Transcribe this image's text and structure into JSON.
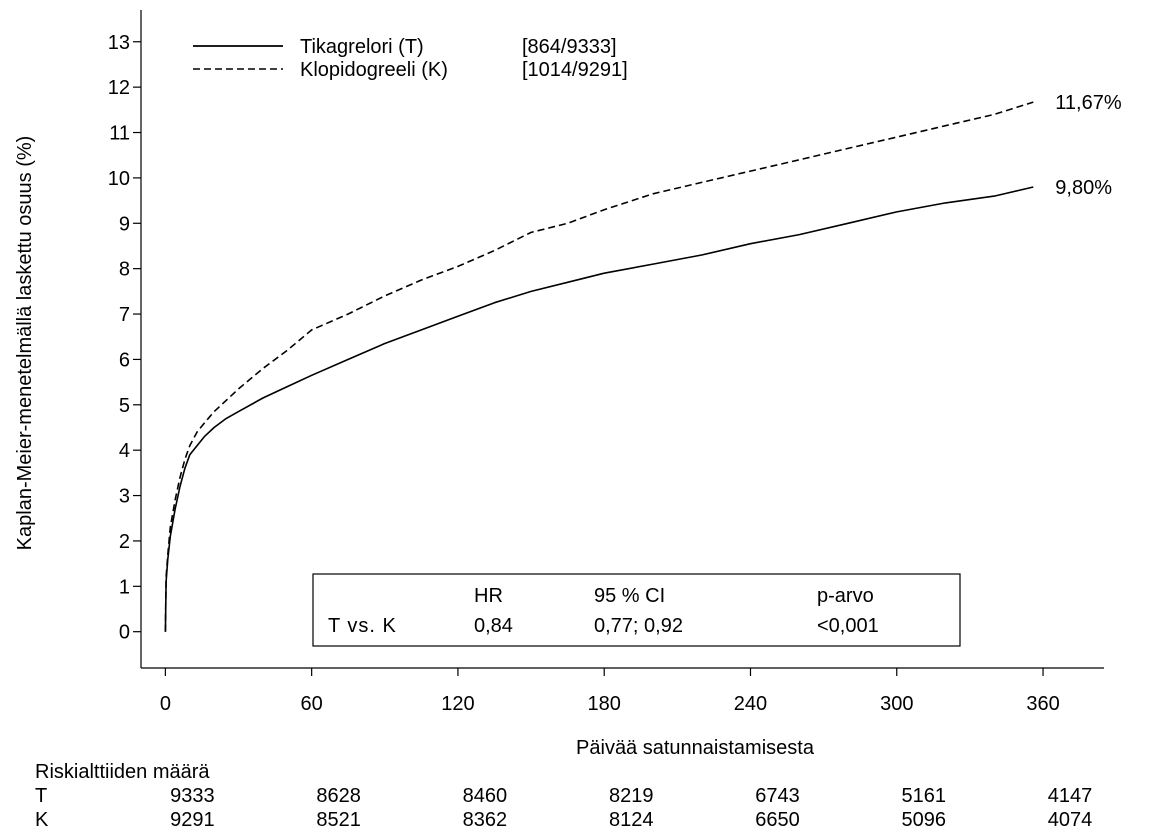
{
  "chart_data": {
    "type": "line",
    "xlabel": "Päivää satunnaistamisesta",
    "ylabel": "Kaplan-Meier-menetelmällä laskettu osuus (%)",
    "xlim": [
      -10,
      385
    ],
    "ylim": [
      -0.8,
      13.7
    ],
    "x_ticks": [
      0,
      60,
      120,
      180,
      240,
      300,
      360
    ],
    "x_tick_labels": [
      "0",
      "60",
      "120",
      "180",
      "240",
      "300",
      "360"
    ],
    "y_ticks": [
      0,
      1,
      2,
      3,
      4,
      5,
      6,
      7,
      8,
      9,
      10,
      11,
      12,
      13
    ],
    "y_tick_labels": [
      "0",
      "1",
      "2",
      "3",
      "4",
      "5",
      "6",
      "7",
      "8",
      "9",
      "10",
      "11",
      "12",
      "13"
    ],
    "legend_position": "top-left",
    "grid": false,
    "series": [
      {
        "name": "Tikagrelori (T)",
        "count": "[864/9333]",
        "line_style": "solid",
        "end_label": "9,80%",
        "x": [
          0,
          0.3,
          1,
          2,
          4,
          6,
          8,
          10,
          13,
          16,
          20,
          25,
          30,
          40,
          50,
          60,
          75,
          90,
          105,
          120,
          135,
          150,
          165,
          180,
          200,
          220,
          240,
          260,
          280,
          300,
          320,
          340,
          356
        ],
        "y": [
          0,
          1.1,
          1.6,
          2.1,
          2.7,
          3.2,
          3.6,
          3.9,
          4.1,
          4.3,
          4.5,
          4.7,
          4.85,
          5.15,
          5.4,
          5.65,
          6.0,
          6.35,
          6.65,
          6.95,
          7.25,
          7.5,
          7.7,
          7.9,
          8.1,
          8.3,
          8.55,
          8.75,
          9.0,
          9.25,
          9.45,
          9.6,
          9.8
        ]
      },
      {
        "name": "Klopidogreeli (K)",
        "count": "[1014/9291]",
        "line_style": "dashed",
        "end_label": "11,67%",
        "x": [
          0,
          0.3,
          1,
          2,
          4,
          6,
          8,
          10,
          13,
          16,
          20,
          25,
          30,
          40,
          50,
          60,
          75,
          90,
          105,
          120,
          135,
          150,
          165,
          180,
          200,
          220,
          240,
          260,
          280,
          300,
          320,
          340,
          356
        ],
        "y": [
          0,
          1.2,
          1.7,
          2.3,
          2.9,
          3.4,
          3.8,
          4.1,
          4.4,
          4.6,
          4.85,
          5.1,
          5.35,
          5.8,
          6.2,
          6.65,
          7.0,
          7.4,
          7.75,
          8.05,
          8.4,
          8.8,
          9.0,
          9.3,
          9.65,
          9.9,
          10.15,
          10.4,
          10.65,
          10.9,
          11.15,
          11.4,
          11.67
        ]
      }
    ],
    "stats_box": {
      "headers": [
        "HR",
        "95 % CI",
        "p-arvo"
      ],
      "row_label": "T vs. K",
      "values": [
        "0,84",
        "0,77; 0,92",
        "<0,001"
      ]
    },
    "risk_table": {
      "title": "Riskialttiiden määrä",
      "rows": [
        {
          "label": "T",
          "values": [
            "9333",
            "8628",
            "8460",
            "8219",
            "6743",
            "5161",
            "4147"
          ]
        },
        {
          "label": "K",
          "values": [
            "9291",
            "8521",
            "8362",
            "8124",
            "6650",
            "5096",
            "4074"
          ]
        }
      ]
    }
  }
}
